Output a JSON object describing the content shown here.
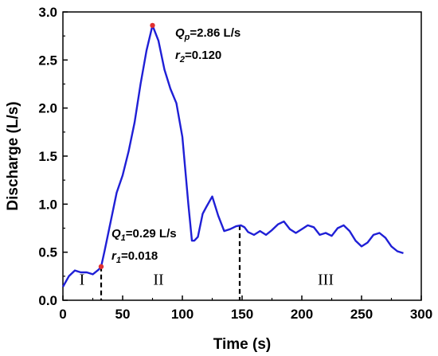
{
  "chart_data": {
    "type": "line",
    "title": "",
    "xlabel": "Time (s)",
    "ylabel": "Discharge (L/s)",
    "xlim": [
      0,
      300
    ],
    "ylim": [
      0,
      3.0
    ],
    "xticks": [
      0,
      50,
      100,
      150,
      200,
      250,
      300
    ],
    "yticks": [
      0.0,
      0.5,
      1.0,
      1.5,
      2.0,
      2.5,
      3.0
    ],
    "xtick_labels": [
      "0",
      "50",
      "100",
      "150",
      "200",
      "250",
      "300"
    ],
    "ytick_labels": [
      "0.0",
      "0.5",
      "1.0",
      "1.5",
      "2.0",
      "2.5",
      "3.0"
    ],
    "grid": false,
    "line_color": "#1f1fd6",
    "series": [
      {
        "x": [
          0,
          5,
          10,
          15,
          20,
          25,
          30,
          32,
          35,
          40,
          45,
          50,
          55,
          60,
          65,
          70,
          75,
          80,
          85,
          90,
          95,
          100,
          105,
          108,
          110,
          113,
          117,
          120,
          125,
          130,
          135,
          140,
          145,
          149,
          152,
          155,
          160,
          165,
          170,
          175,
          180,
          185,
          190,
          195,
          200,
          205,
          210,
          215,
          220,
          225,
          230,
          235,
          240,
          245,
          250,
          255,
          260,
          265,
          270,
          275,
          280,
          285
        ],
        "y": [
          0.14,
          0.25,
          0.31,
          0.29,
          0.29,
          0.27,
          0.32,
          0.35,
          0.52,
          0.82,
          1.12,
          1.3,
          1.55,
          1.85,
          2.25,
          2.6,
          2.86,
          2.7,
          2.4,
          2.2,
          2.05,
          1.7,
          1.0,
          0.62,
          0.62,
          0.66,
          0.9,
          0.97,
          1.08,
          0.88,
          0.72,
          0.74,
          0.77,
          0.78,
          0.76,
          0.71,
          0.68,
          0.72,
          0.68,
          0.73,
          0.79,
          0.82,
          0.74,
          0.7,
          0.74,
          0.78,
          0.76,
          0.68,
          0.7,
          0.67,
          0.75,
          0.78,
          0.72,
          0.62,
          0.56,
          0.6,
          0.68,
          0.7,
          0.65,
          0.56,
          0.51,
          0.49
        ]
      }
    ],
    "points": [
      {
        "x": 32,
        "y": 0.35,
        "color": "#e03030"
      },
      {
        "x": 75,
        "y": 2.86,
        "color": "#e03030"
      }
    ],
    "dividers": [
      {
        "x": 32,
        "y_top": 0.35
      },
      {
        "x": 148,
        "y_top": 0.78
      }
    ],
    "annotations": {
      "qp": {
        "q": "Q",
        "sub": "p",
        "rest": "=2.86 L/s"
      },
      "r2": {
        "r": "r",
        "sub": "2",
        "rest": "=0.120"
      },
      "q1": {
        "q": "Q",
        "sub": "1",
        "rest": "=0.29 L/s"
      },
      "r1": {
        "r": "r",
        "sub": "1",
        "rest": "=0.018"
      }
    },
    "regions": [
      {
        "label": "I",
        "x": 16,
        "y": 0.16
      },
      {
        "label": "II",
        "x": 80,
        "y": 0.16
      },
      {
        "label": "III",
        "x": 220,
        "y": 0.16
      }
    ]
  }
}
